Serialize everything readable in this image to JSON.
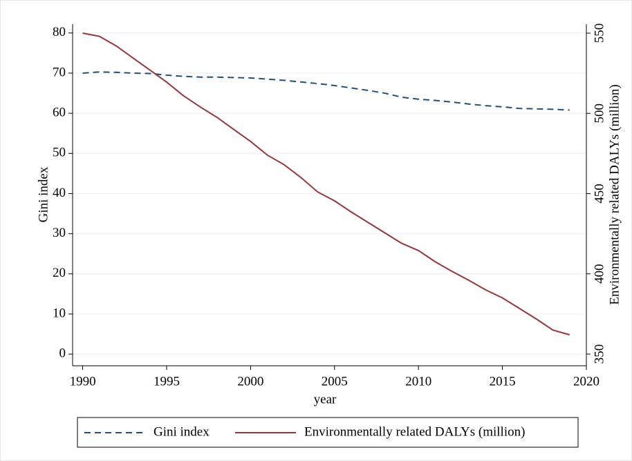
{
  "chart_data": {
    "type": "line",
    "x": [
      1990,
      1991,
      1992,
      1993,
      1994,
      1995,
      1996,
      1997,
      1998,
      1999,
      2000,
      2001,
      2002,
      2003,
      2004,
      2005,
      2006,
      2007,
      2008,
      2009,
      2010,
      2011,
      2012,
      2013,
      2014,
      2015,
      2016,
      2017,
      2018,
      2019
    ],
    "series": [
      {
        "name": "Gini index",
        "color": "#1f4e79",
        "linestyle": "dashed",
        "values": [
          70,
          70.3,
          70.2,
          70,
          69.9,
          69.5,
          69.2,
          69,
          69,
          68.9,
          68.8,
          68.5,
          68.2,
          67.8,
          67.4,
          66.9,
          66.3,
          65.7,
          65,
          64,
          63.5,
          63.2,
          62.8,
          62.3,
          61.9,
          61.6,
          61.2,
          61.1,
          61,
          60.8
        ]
      },
      {
        "name": "Environmentally related DALYs (million)",
        "color": "#96353a",
        "linestyle": "solid",
        "axis": "y2",
        "values": [
          550,
          548,
          542,
          534.5,
          527,
          519.5,
          511,
          504,
          497.5,
          490,
          482.5,
          474,
          468,
          460,
          451,
          445.5,
          438.5,
          432,
          425.5,
          419,
          414.5,
          407.5,
          401.5,
          396,
          390,
          385,
          378.5,
          372,
          365,
          362
        ]
      }
    ],
    "xlabel": "year",
    "ylabel": "Gini index",
    "y2label": "Environmentally related DALYs (million)",
    "xlim": [
      1989.4,
      2020
    ],
    "xticks": [
      1990,
      1995,
      2000,
      2005,
      2010,
      2015,
      2020
    ],
    "ylim": [
      -2.9,
      82.2
    ],
    "yticks": [
      0,
      10,
      20,
      30,
      40,
      50,
      60,
      70,
      80
    ],
    "y2lim": [
      342.7,
      555.6
    ],
    "y2ticks": [
      350,
      400,
      450,
      500,
      550
    ],
    "grid": true,
    "legend": "bottom"
  }
}
